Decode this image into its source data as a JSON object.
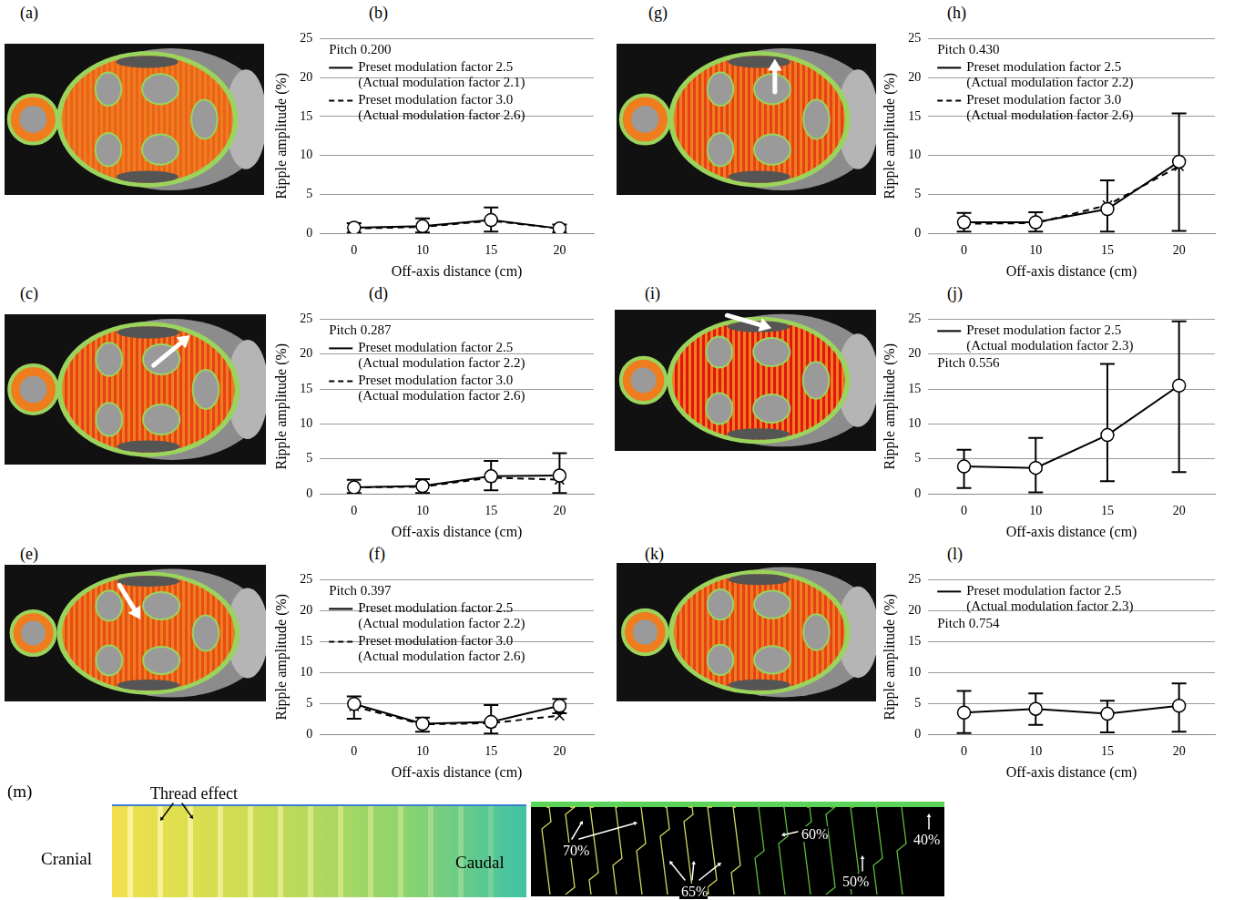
{
  "chart_data": [
    {
      "label": "(b)",
      "type": "line",
      "title": "Pitch 0.200",
      "xlabel": "Off-axis distance (cm)",
      "ylabel": "Ripple amplitude (%)",
      "categories": [
        "0",
        "10",
        "15",
        "20"
      ],
      "ylim": [
        0,
        25
      ],
      "yticks": [
        0,
        5,
        10,
        15,
        20,
        25
      ],
      "grid": true,
      "legend": "upper left",
      "series": [
        {
          "name": "Preset modulation factor 2.5 (Actual modulation factor 2.1)",
          "color": "#000000",
          "line_style": "solid",
          "marker": "circle",
          "values": [
            0.7,
            0.9,
            1.7,
            0.6
          ],
          "error_minus": [
            0.6,
            0.8,
            1.5,
            0.5
          ],
          "error_plus": [
            0.6,
            1.0,
            1.6,
            0.5
          ]
        },
        {
          "name": "Preset modulation factor 3.0 (Actual modulation factor 2.6)",
          "color": "#000000",
          "line_style": "dashed",
          "marker": "x",
          "values": [
            0.6,
            0.8,
            1.6,
            0.6
          ]
        }
      ]
    },
    {
      "label": "(d)",
      "type": "line",
      "title": "Pitch 0.287",
      "xlabel": "Off-axis distance (cm)",
      "ylabel": "Ripple amplitude (%)",
      "categories": [
        "0",
        "10",
        "15",
        "20"
      ],
      "ylim": [
        0,
        25
      ],
      "yticks": [
        0,
        5,
        10,
        15,
        20,
        25
      ],
      "grid": true,
      "legend": "upper left",
      "series": [
        {
          "name": "Preset modulation factor 2.5 (Actual modulation factor 2.2)",
          "color": "#000000",
          "line_style": "solid",
          "marker": "circle",
          "values": [
            0.9,
            1.1,
            2.5,
            2.6
          ],
          "error_minus": [
            0.8,
            1.0,
            2.0,
            2.5
          ],
          "error_plus": [
            1.1,
            1.0,
            2.2,
            3.2
          ]
        },
        {
          "name": "Preset modulation factor 3.0 (Actual modulation factor 2.6)",
          "color": "#000000",
          "line_style": "dashed",
          "marker": "x",
          "values": [
            0.9,
            1.0,
            2.3,
            2.0
          ]
        }
      ]
    },
    {
      "label": "(f)",
      "type": "line",
      "title": "Pitch 0.397",
      "xlabel": "Off-axis distance (cm)",
      "ylabel": "Ripple amplitude (%)",
      "categories": [
        "0",
        "10",
        "15",
        "20"
      ],
      "ylim": [
        0,
        25
      ],
      "yticks": [
        0,
        5,
        10,
        15,
        20,
        25
      ],
      "grid": true,
      "legend": "upper left",
      "series": [
        {
          "name": "Preset modulation factor 2.5 (Actual modulation factor 2.2)",
          "color": "#000000",
          "line_style": "solid",
          "marker": "circle",
          "values": [
            4.9,
            1.7,
            2.0,
            4.6
          ],
          "error_minus": [
            2.4,
            1.3,
            1.9,
            1.2
          ],
          "error_plus": [
            1.2,
            1.0,
            2.7,
            1.1
          ]
        },
        {
          "name": "Preset modulation factor 3.0 (Actual modulation factor 2.6)",
          "color": "#000000",
          "line_style": "dashed",
          "marker": "x",
          "values": [
            4.5,
            1.6,
            1.8,
            3.0
          ]
        }
      ]
    },
    {
      "label": "(h)",
      "type": "line",
      "title": "Pitch 0.430",
      "xlabel": "Off-axis distance (cm)",
      "ylabel": "Ripple amplitude (%)",
      "categories": [
        "0",
        "10",
        "15",
        "20"
      ],
      "ylim": [
        0,
        25
      ],
      "yticks": [
        0,
        5,
        10,
        15,
        20,
        25
      ],
      "grid": true,
      "legend": "upper left",
      "series": [
        {
          "name": "Preset modulation factor 2.5 (Actual modulation factor 2.2)",
          "color": "#000000",
          "line_style": "solid",
          "marker": "circle",
          "values": [
            1.4,
            1.4,
            3.1,
            9.2
          ],
          "error_minus": [
            1.2,
            1.2,
            2.9,
            8.9
          ],
          "error_plus": [
            1.2,
            1.3,
            3.7,
            6.2
          ]
        },
        {
          "name": "Preset modulation factor 3.0 (Actual modulation factor 2.6)",
          "color": "#000000",
          "line_style": "dashed",
          "marker": "x",
          "values": [
            1.2,
            1.3,
            3.6,
            8.6
          ]
        }
      ]
    },
    {
      "label": "(j)",
      "type": "line",
      "title": "Pitch 0.556",
      "xlabel": "Off-axis distance (cm)",
      "ylabel": "Ripple amplitude (%)",
      "categories": [
        "0",
        "10",
        "15",
        "20"
      ],
      "ylim": [
        0,
        25
      ],
      "yticks": [
        0,
        5,
        10,
        15,
        20,
        25
      ],
      "grid": true,
      "legend": "upper left",
      "series": [
        {
          "name": "Preset modulation factor 2.5 (Actual modulation factor 2.3)",
          "color": "#000000",
          "line_style": "solid",
          "marker": "circle",
          "values": [
            3.9,
            3.7,
            8.4,
            15.5
          ],
          "error_minus": [
            3.1,
            3.5,
            6.6,
            12.4
          ],
          "error_plus": [
            2.4,
            4.3,
            10.2,
            9.2
          ]
        }
      ]
    },
    {
      "label": "(l)",
      "type": "line",
      "title": "Pitch 0.754",
      "xlabel": "Off-axis distance (cm)",
      "ylabel": "Ripple amplitude (%)",
      "categories": [
        "0",
        "10",
        "15",
        "20"
      ],
      "ylim": [
        0,
        25
      ],
      "yticks": [
        0,
        5,
        10,
        15,
        20,
        25
      ],
      "grid": true,
      "legend": "upper left",
      "series": [
        {
          "name": "Preset modulation factor 2.5 (Actual modulation factor 2.3)",
          "color": "#000000",
          "line_style": "solid",
          "marker": "circle",
          "values": [
            3.5,
            4.1,
            3.3,
            4.6
          ],
          "error_minus": [
            3.3,
            2.6,
            3.0,
            4.2
          ],
          "error_plus": [
            3.5,
            2.5,
            2.1,
            3.6
          ]
        }
      ]
    }
  ],
  "image_panels": [
    {
      "label": "(a)"
    },
    {
      "label": "(c)"
    },
    {
      "label": "(e)"
    },
    {
      "label": "(g)"
    },
    {
      "label": "(i)"
    },
    {
      "label": "(k)"
    }
  ],
  "panel_m": {
    "label": "(m)",
    "annotation": "Thread effect",
    "left_text": "Cranial",
    "right_text": "Caudal",
    "contour_labels": [
      "70%",
      "65%",
      "60%",
      "50%",
      "40%"
    ]
  }
}
